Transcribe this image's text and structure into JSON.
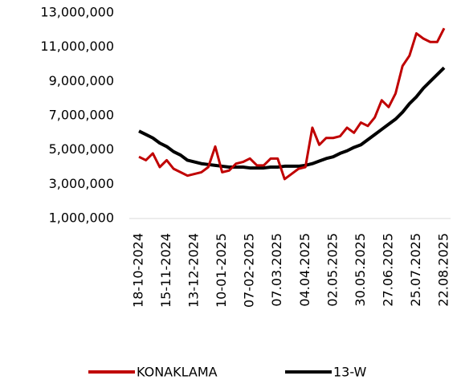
{
  "chart_data": {
    "type": "line",
    "categories": [
      "18-10-2024",
      null,
      null,
      null,
      "15-11-2024",
      null,
      null,
      null,
      "13-12-2024",
      null,
      null,
      null,
      "10-01-2025",
      null,
      null,
      null,
      "07-02-2025",
      null,
      null,
      null,
      "07.03.2025",
      null,
      null,
      null,
      "04.04.2025",
      null,
      null,
      null,
      "02.05.2025",
      null,
      null,
      null,
      "30.05.2025",
      null,
      null,
      null,
      "27.06.2025",
      null,
      null,
      null,
      "25.07.2025",
      null,
      null,
      null,
      "22.08.2025"
    ],
    "series": [
      {
        "name": "KONAKLAMA",
        "color": "#c00000",
        "values": [
          4600000,
          4400000,
          4800000,
          4000000,
          4400000,
          3900000,
          3700000,
          3500000,
          3600000,
          3700000,
          4000000,
          5200000,
          3700000,
          3800000,
          4200000,
          4300000,
          4500000,
          4100000,
          4100000,
          4500000,
          4500000,
          3300000,
          3600000,
          3900000,
          4000000,
          6300000,
          5300000,
          5700000,
          5700000,
          5800000,
          6300000,
          6000000,
          6600000,
          6400000,
          6900000,
          7900000,
          7500000,
          8300000,
          9900000,
          10500000,
          11800000,
          11500000,
          11300000,
          11300000,
          12100000
        ]
      },
      {
        "name": "13-W",
        "color": "#000000",
        "values": [
          6100000,
          5900000,
          5700000,
          5400000,
          5200000,
          4900000,
          4700000,
          4400000,
          4300000,
          4200000,
          4150000,
          4100000,
          4050000,
          4000000,
          4000000,
          4000000,
          3950000,
          3950000,
          3950000,
          4000000,
          4000000,
          4050000,
          4050000,
          4050000,
          4100000,
          4200000,
          4350000,
          4500000,
          4600000,
          4800000,
          4950000,
          5150000,
          5300000,
          5600000,
          5900000,
          6200000,
          6500000,
          6800000,
          7200000,
          7700000,
          8100000,
          8600000,
          9000000,
          9400000,
          9800000
        ]
      }
    ],
    "ylim": [
      1000000,
      13000000
    ],
    "yticks": [
      {
        "value": 1000000,
        "label": "1,000,000"
      },
      {
        "value": 3000000,
        "label": "3,000,000"
      },
      {
        "value": 5000000,
        "label": "5,000,000"
      },
      {
        "value": 7000000,
        "label": "7,000,000"
      },
      {
        "value": 9000000,
        "label": "9,000,000"
      },
      {
        "value": 11000000,
        "label": "11,000,000"
      },
      {
        "value": 13000000,
        "label": "13,000,000"
      }
    ],
    "legend": "bottom"
  }
}
